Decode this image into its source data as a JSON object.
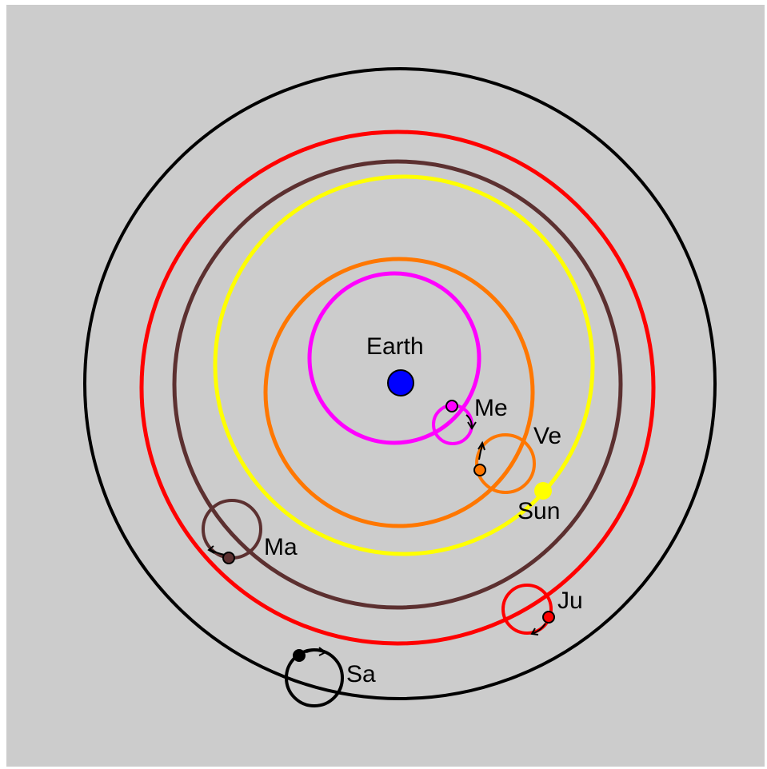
{
  "labels": {
    "earth": "Earth",
    "mercury": "Me",
    "venus": "Ve",
    "sun": "Sun",
    "mars": "Ma",
    "jupiter": "Ju",
    "saturn": "Sa"
  },
  "colors": {
    "background": "#cccccc",
    "earth": "#0000ff",
    "mercury": "#ff00ff",
    "venus": "#ff7700",
    "sun": "#ffff00",
    "mars": "#5c3030",
    "jupiter": "#ff0000",
    "saturn": "#000000"
  }
}
